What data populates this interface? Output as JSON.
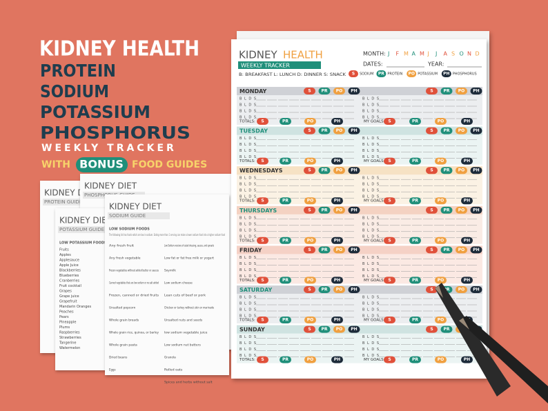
{
  "headline": {
    "title": "KIDNEY HEALTH",
    "lines": [
      "PROTEIN",
      "SODIUM",
      "POTASSIUM",
      "PHOSPHORUS"
    ],
    "subtitle": "WEEKLY TRACKER",
    "bonus_prefix": "WITH",
    "bonus": "BONUS",
    "bonus_suffix": "FOOD GUIDES"
  },
  "tracker": {
    "title_a": "KIDNEY",
    "title_b": "HEALTH",
    "badge": "WEEKLY TRACKER",
    "month_label": "MONTH:",
    "months": [
      "J",
      "F",
      "M",
      "A",
      "M",
      "J",
      "J",
      "A",
      "S",
      "O",
      "N",
      "D"
    ],
    "dates_label": "DATES:",
    "year_label": "YEAR:",
    "meals_key": "B: BREAKFAST L: LUNCH D: DINNER S: SNACK",
    "legend": [
      {
        "code": "S",
        "label": "SODIUM"
      },
      {
        "code": "PR",
        "label": "PROTEIN"
      },
      {
        "code": "PO",
        "label": "POTASSIUM"
      },
      {
        "code": "PH",
        "label": "PHOSPHORUS"
      }
    ],
    "days": [
      "MONDAY",
      "TUESDAY",
      "WEDNESDAYS",
      "THURSDAYS",
      "FRIDAY",
      "SATURDAY",
      "SUNDAY"
    ],
    "row_label": "B L D S",
    "totals_label": "TOTALS:",
    "goals_label": "MY GOALS:"
  },
  "guides": [
    {
      "title": "KIDNEY DIET",
      "subtitle": "PROTEIN GUIDE"
    },
    {
      "title": "KIDNEY DIET",
      "subtitle": "PHOSPHORUS GUIDE"
    },
    {
      "title": "KIDNEY DIET",
      "subtitle": "POTASSIUM GUIDE",
      "heading": "LOW POTASSIUM FOODS",
      "columns": [
        [
          "Fruits",
          "Apples",
          "Applesauce",
          "Apple Juice",
          "Blackberries",
          "Blueberries",
          "Cranberries",
          "Fruit cocktail",
          "Grapes",
          "Grape juice",
          "Grapefruit",
          "Mandarin Oranges",
          "Peaches",
          "Pears",
          "Pineapple",
          "Plums",
          "Raspberries",
          "Strawberries",
          "Tangerine",
          "Watermelon"
        ]
      ]
    },
    {
      "title": "KIDNEY DIET",
      "subtitle": "SODIUM GUIDE",
      "heading": "LOW SODIUM FOODS",
      "intro": "The following list has foods which are low in sodium. Eating more than 1 serving can make a lower sodium food into a higher sodium food",
      "columns": [
        [
          "Any fresh fruit",
          "Any fresh vegetable",
          "Frozen vegetables without added butter or sauces",
          "Canned vegetables that are low sodium or no salt added",
          "Frozen, canned or dried fruits",
          "Unsalted popcorn",
          "Whole grain breads",
          "Whole grain rice, quinoa, or barley",
          "Whole grain pasta",
          "Dried beans",
          "Eggs"
        ],
        [
          "Low Sodium versions of salad dressing, sauces, and spreads",
          "Low fat or fat free milk or yogurt",
          "Soymilk",
          "Low sodium cheese",
          "Lean cuts of beef or pork",
          "Chicken or turkey without skin or marinade",
          "Unsalted nuts and seeds",
          "low sodium vegetable juice",
          "Low sodium nut butters",
          "Granola",
          "Rolled oats",
          "Spices and herbs without salt"
        ]
      ]
    }
  ]
}
